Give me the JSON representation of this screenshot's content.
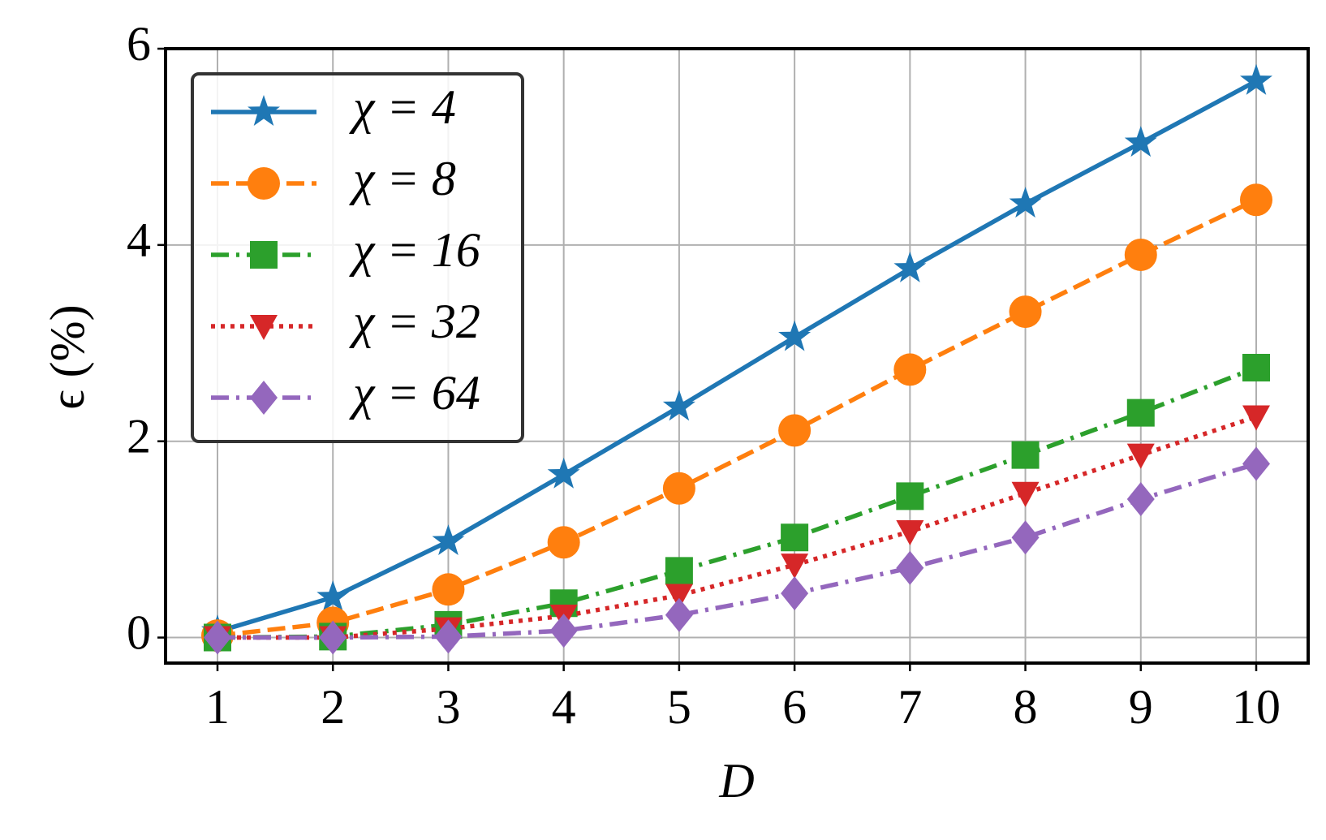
{
  "chart_data": {
    "type": "line",
    "xlabel": "D",
    "ylabel": "ϵ (%)",
    "x": [
      1,
      2,
      3,
      4,
      5,
      6,
      7,
      8,
      9,
      10
    ],
    "xlim": [
      0.55,
      10.45
    ],
    "xticks": [
      1,
      2,
      3,
      4,
      5,
      6,
      7,
      8,
      9,
      10
    ],
    "ylim": [
      -0.26,
      6
    ],
    "yticks": [
      0,
      2,
      4,
      6
    ],
    "grid": true,
    "legend": "upper left",
    "series": [
      {
        "name": "χ = 4",
        "color": "#1f77b4",
        "marker": "star",
        "linestyle": "solid",
        "values": [
          0.06,
          0.41,
          0.98,
          1.66,
          2.35,
          3.06,
          3.76,
          4.42,
          5.04,
          5.67
        ]
      },
      {
        "name": "χ = 8",
        "color": "#ff7f0e",
        "marker": "circle",
        "linestyle": "dashed",
        "values": [
          0.02,
          0.15,
          0.49,
          0.97,
          1.52,
          2.11,
          2.73,
          3.32,
          3.9,
          4.46
        ]
      },
      {
        "name": "χ = 16",
        "color": "#2ca02c",
        "marker": "square",
        "linestyle": "dashdot",
        "values": [
          0,
          0.01,
          0.13,
          0.35,
          0.68,
          1.02,
          1.44,
          1.86,
          2.29,
          2.75
        ]
      },
      {
        "name": "χ = 32",
        "color": "#d62728",
        "marker": "triangle-down",
        "linestyle": "dotted",
        "values": [
          0,
          0,
          0.09,
          0.22,
          0.43,
          0.74,
          1.08,
          1.47,
          1.86,
          2.25
        ]
      },
      {
        "name": "χ = 64",
        "color": "#9467bd",
        "marker": "diamond",
        "linestyle": "dashdot",
        "values": [
          0,
          0,
          0.01,
          0.07,
          0.23,
          0.45,
          0.71,
          1.02,
          1.41,
          1.77
        ]
      }
    ]
  }
}
